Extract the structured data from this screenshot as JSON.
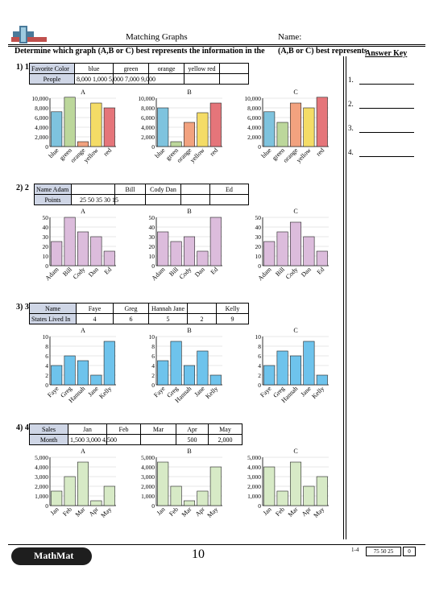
{
  "header": {
    "title": "Matching Graphs",
    "name_label": "Name:",
    "instructions": "Determine which graph (A,B or C) best represents the information in the",
    "instructions_overlap": "(A,B or C) best represents the information",
    "answer_key_label": "Answer Key"
  },
  "answers": [
    "1.",
    "2.",
    "3.",
    "4."
  ],
  "problems": [
    {
      "number": "1) 1",
      "header_cells": [
        "Favorite Color",
        "blue",
        "green",
        "orange",
        "yellow red",
        ""
      ],
      "value_cells": [
        "People",
        "8,000 1,000 5,000 7,000 9,000",
        "",
        "",
        "",
        ""
      ],
      "chart_titles": [
        "A",
        "B",
        "C"
      ]
    },
    {
      "number": "2) 2",
      "header_cells": [
        "Name Adam",
        "",
        "Bill",
        "Cody Dan",
        "",
        "Ed"
      ],
      "value_cells": [
        "Points",
        "25 50 35 30 15",
        "",
        "",
        "",
        ""
      ],
      "chart_titles": [
        "A",
        "B",
        "C"
      ]
    },
    {
      "number": "3) 3",
      "header_cells": [
        "Name",
        "Faye",
        "Greg",
        "Hannah Jane",
        "",
        "Kelly"
      ],
      "value_cells": [
        "States Lived In",
        "4",
        "6",
        "5",
        "2",
        "9"
      ],
      "chart_titles": [
        "A",
        "B",
        "C"
      ]
    },
    {
      "number": "4) 4",
      "header_cells": [
        "Sales",
        "Jan",
        "Feb",
        "Mar",
        "Apr",
        "May"
      ],
      "value_cells": [
        "Month",
        "1,500 3,000 4,500",
        "",
        "",
        "500",
        "2,000"
      ],
      "chart_titles": [
        "A",
        "B",
        "C"
      ]
    }
  ],
  "chart_data": [
    {
      "type": "bar",
      "title": "A",
      "categories": [
        "blue",
        "green",
        "orange",
        "yellow",
        "red"
      ],
      "values": [
        7200,
        10200,
        1000,
        9000,
        8000
      ],
      "ylim": [
        0,
        10000
      ],
      "yticks": [
        "0",
        "2,000",
        "4,000",
        "6,000",
        "8,000",
        "10,000"
      ],
      "colors": [
        "#7ec3de",
        "#bcd79b",
        "#f2a27f",
        "#f4dc66",
        "#e5757a"
      ]
    },
    {
      "type": "bar",
      "title": "B",
      "categories": [
        "blue",
        "green",
        "orange",
        "yellow",
        "red"
      ],
      "values": [
        8000,
        1000,
        5000,
        7000,
        9000
      ],
      "ylim": [
        0,
        10000
      ],
      "yticks": [
        "0",
        "2,000",
        "4,000",
        "6,000",
        "8,000",
        "10,000"
      ],
      "colors": [
        "#7ec3de",
        "#bcd79b",
        "#f2a27f",
        "#f4dc66",
        "#e5757a"
      ]
    },
    {
      "type": "bar",
      "title": "C",
      "categories": [
        "blue",
        "green",
        "orange",
        "yellow",
        "red"
      ],
      "values": [
        7200,
        5000,
        9000,
        8000,
        10200
      ],
      "ylim": [
        0,
        10000
      ],
      "yticks": [
        "0",
        "2,000",
        "4,000",
        "6,000",
        "8,000",
        "10,000"
      ],
      "colors": [
        "#7ec3de",
        "#bcd79b",
        "#f2a27f",
        "#f4dc66",
        "#e5757a"
      ]
    },
    {
      "type": "bar",
      "title": "A",
      "categories": [
        "Adam",
        "Bill",
        "Cody",
        "Dan",
        "Ed"
      ],
      "values": [
        25,
        50,
        35,
        30,
        15
      ],
      "ylim": [
        0,
        50
      ],
      "yticks": [
        "0",
        "10",
        "20",
        "30",
        "40",
        "50"
      ],
      "colors": [
        "#dcbcdc"
      ]
    },
    {
      "type": "bar",
      "title": "B",
      "categories": [
        "Adam",
        "Bill",
        "Cody",
        "Dan",
        "Ed"
      ],
      "values": [
        35,
        25,
        30,
        15,
        50
      ],
      "ylim": [
        0,
        50
      ],
      "yticks": [
        "0",
        "10",
        "20",
        "30",
        "40",
        "50"
      ],
      "colors": [
        "#dcbcdc"
      ]
    },
    {
      "type": "bar",
      "title": "C",
      "categories": [
        "Adam",
        "Bill",
        "Cody",
        "Dan",
        "Ed"
      ],
      "values": [
        25,
        35,
        45,
        30,
        15
      ],
      "ylim": [
        0,
        50
      ],
      "yticks": [
        "0",
        "10",
        "20",
        "30",
        "40",
        "50"
      ],
      "colors": [
        "#dcbcdc"
      ]
    },
    {
      "type": "bar",
      "title": "A",
      "categories": [
        "Faye",
        "Greg",
        "Hannah",
        "Jane",
        "Kelly"
      ],
      "values": [
        4,
        6,
        5,
        2,
        9
      ],
      "ylim": [
        0,
        10
      ],
      "yticks": [
        "0",
        "2",
        "4",
        "6",
        "8",
        "10"
      ],
      "colors": [
        "#6ec3ec"
      ]
    },
    {
      "type": "bar",
      "title": "B",
      "categories": [
        "Faye",
        "Greg",
        "Hannah",
        "Jane",
        "Kelly"
      ],
      "values": [
        5,
        9,
        4,
        7,
        2
      ],
      "ylim": [
        0,
        10
      ],
      "yticks": [
        "0",
        "2",
        "4",
        "6",
        "8",
        "10"
      ],
      "colors": [
        "#6ec3ec"
      ]
    },
    {
      "type": "bar",
      "title": "C",
      "categories": [
        "Faye",
        "Greg",
        "Hannah",
        "Jane",
        "Kelly"
      ],
      "values": [
        4,
        7,
        6,
        9,
        2
      ],
      "ylim": [
        0,
        10
      ],
      "yticks": [
        "0",
        "2",
        "4",
        "6",
        "8",
        "10"
      ],
      "colors": [
        "#6ec3ec"
      ]
    },
    {
      "type": "bar",
      "title": "A",
      "categories": [
        "Jan",
        "Feb",
        "Mar",
        "Apr",
        "May"
      ],
      "values": [
        1500,
        3000,
        4500,
        500,
        2000
      ],
      "ylim": [
        0,
        5000
      ],
      "yticks": [
        "0",
        "1,000",
        "2,000",
        "3,000",
        "4,000",
        "5,000"
      ],
      "colors": [
        "#d7eac6"
      ]
    },
    {
      "type": "bar",
      "title": "B",
      "categories": [
        "Jan",
        "Feb",
        "Mar",
        "Apr",
        "May"
      ],
      "values": [
        4500,
        2000,
        500,
        1500,
        4000
      ],
      "ylim": [
        0,
        5000
      ],
      "yticks": [
        "0",
        "1,000",
        "2,000",
        "3,000",
        "4,000",
        "5,000"
      ],
      "colors": [
        "#d7eac6"
      ]
    },
    {
      "type": "bar",
      "title": "C",
      "categories": [
        "Jan",
        "Feb",
        "Mar",
        "Apr",
        "May"
      ],
      "values": [
        4000,
        1500,
        4500,
        2000,
        3000
      ],
      "ylim": [
        0,
        5000
      ],
      "yticks": [
        "0",
        "1,000",
        "2,000",
        "3,000",
        "4,000",
        "5,000"
      ],
      "colors": [
        "#d7eac6"
      ]
    }
  ],
  "footer": {
    "logo_text": "MathMat",
    "page_number": "10",
    "score_label": "1-4",
    "score_box1": "75 50 25",
    "score_box2": "0"
  }
}
